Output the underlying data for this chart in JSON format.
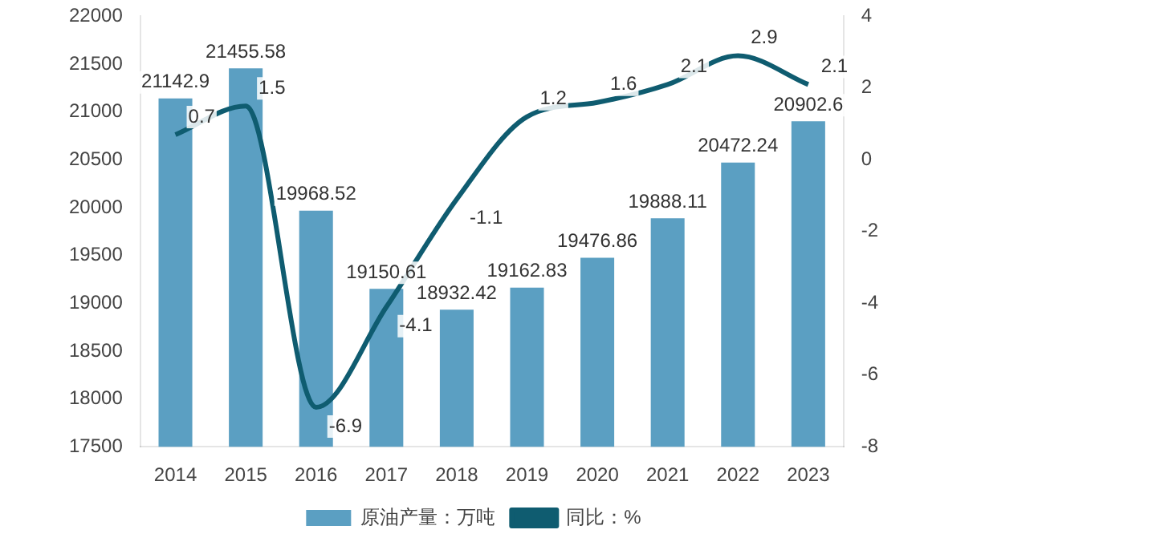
{
  "chart_data": {
    "type": "bar",
    "categories": [
      "2014",
      "2015",
      "2016",
      "2017",
      "2018",
      "2019",
      "2020",
      "2021",
      "2022",
      "2023"
    ],
    "series": [
      {
        "name": "原油产量：万吨",
        "color": "#5b9fc2",
        "values": [
          21142.9,
          21455.58,
          19968.52,
          19150.61,
          18932.42,
          19162.83,
          19476.86,
          19888.11,
          20472.24,
          20902.6
        ]
      },
      {
        "name": "同比：%",
        "type": "line",
        "axis": "y2",
        "color": "#0f5c70",
        "values": [
          0.7,
          1.5,
          -6.9,
          -4.1,
          -1.1,
          1.2,
          1.6,
          2.1,
          2.9,
          2.1
        ]
      }
    ],
    "ylim": [
      17500,
      22000
    ],
    "yticks": [
      17500,
      18000,
      18500,
      19000,
      19500,
      20000,
      20500,
      21000,
      21500,
      22000
    ],
    "y2lim": [
      -8,
      4
    ],
    "y2ticks": [
      -8,
      -6,
      -4,
      -2,
      0,
      2,
      4
    ],
    "data_labels": true,
    "legend": "bottom",
    "grid": false,
    "marker": "none"
  }
}
